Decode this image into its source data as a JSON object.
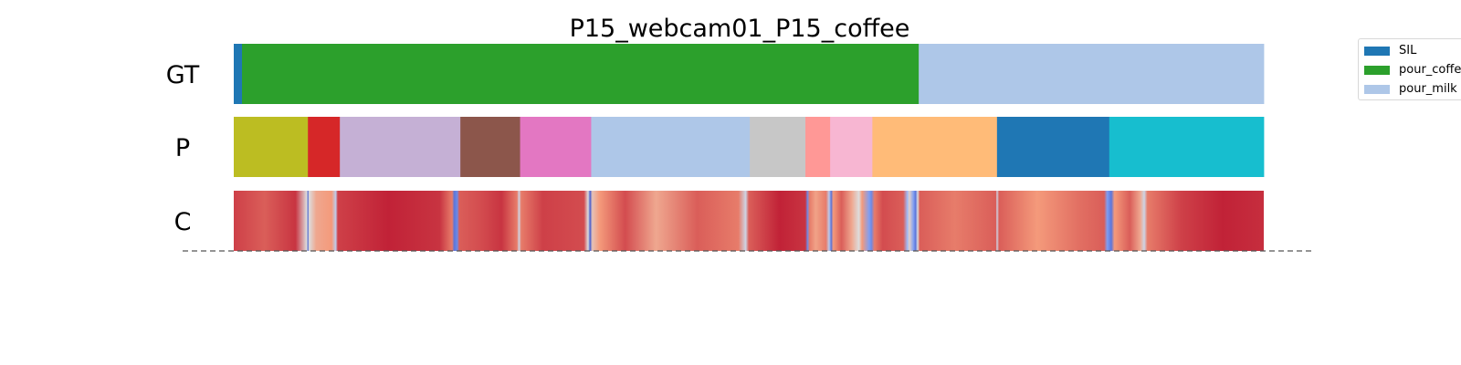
{
  "chart_data": {
    "type": "segmentation",
    "title": "P15_webcam01_P15_coffee",
    "total_frames": 1000,
    "rows": [
      {
        "label": "GT",
        "segments": [
          {
            "start": 0,
            "end": 8,
            "action": "SIL",
            "color": "#1f77b4"
          },
          {
            "start": 8,
            "end": 665,
            "action": "pour_coffee",
            "color": "#2ca02c"
          },
          {
            "start": 665,
            "end": 1000,
            "action": "pour_milk",
            "color": "#aec7e8"
          }
        ]
      },
      {
        "label": "P",
        "segments": [
          {
            "start": 0,
            "end": 72,
            "color": "#bcbd22"
          },
          {
            "start": 72,
            "end": 103,
            "color": "#d62728"
          },
          {
            "start": 103,
            "end": 220,
            "color": "#c5b0d5"
          },
          {
            "start": 220,
            "end": 278,
            "color": "#8c564b"
          },
          {
            "start": 278,
            "end": 347,
            "color": "#e377c2"
          },
          {
            "start": 347,
            "end": 501,
            "color": "#aec7e8"
          },
          {
            "start": 501,
            "end": 555,
            "color": "#c7c7c7"
          },
          {
            "start": 555,
            "end": 579,
            "color": "#ff9896"
          },
          {
            "start": 579,
            "end": 620,
            "color": "#f7b6d2"
          },
          {
            "start": 620,
            "end": 741,
            "color": "#ffbb78"
          },
          {
            "start": 741,
            "end": 850,
            "color": "#1f77b4"
          },
          {
            "start": 850,
            "end": 1000,
            "color": "#17becf"
          }
        ]
      },
      {
        "label": "C",
        "colormap": "coolwarm",
        "confidence": [
          [
            0,
            0.9
          ],
          [
            30,
            0.85
          ],
          [
            60,
            0.92
          ],
          [
            71,
            0.5
          ],
          [
            72,
            0.05
          ],
          [
            73,
            0.5
          ],
          [
            80,
            0.7
          ],
          [
            95,
            0.75
          ],
          [
            99,
            0.4
          ],
          [
            101,
            0.9
          ],
          [
            150,
            0.95
          ],
          [
            200,
            0.92
          ],
          [
            212,
            0.8
          ],
          [
            214,
            0.1
          ],
          [
            217,
            0.15
          ],
          [
            219,
            0.85
          ],
          [
            240,
            0.88
          ],
          [
            260,
            0.92
          ],
          [
            275,
            0.8
          ],
          [
            277,
            0.45
          ],
          [
            279,
            0.8
          ],
          [
            300,
            0.9
          ],
          [
            340,
            0.88
          ],
          [
            344,
            0.5
          ],
          [
            346,
            0.05
          ],
          [
            348,
            0.6
          ],
          [
            355,
            0.75
          ],
          [
            380,
            0.88
          ],
          [
            410,
            0.7
          ],
          [
            450,
            0.85
          ],
          [
            490,
            0.8
          ],
          [
            497,
            0.45
          ],
          [
            500,
            0.85
          ],
          [
            530,
            0.95
          ],
          [
            555,
            0.92
          ],
          [
            557,
            0.15
          ],
          [
            559,
            0.8
          ],
          [
            565,
            0.72
          ],
          [
            575,
            0.8
          ],
          [
            578,
            0.4
          ],
          [
            580,
            0.1
          ],
          [
            582,
            0.75
          ],
          [
            590,
            0.85
          ],
          [
            600,
            0.7
          ],
          [
            607,
            0.5
          ],
          [
            610,
            0.75
          ],
          [
            617,
            0.2
          ],
          [
            619,
            0.15
          ],
          [
            622,
            0.8
          ],
          [
            630,
            0.88
          ],
          [
            650,
            0.85
          ],
          [
            654,
            0.3
          ],
          [
            656,
            0.55
          ],
          [
            660,
            0.2
          ],
          [
            662,
            0.1
          ],
          [
            664,
            0.5
          ],
          [
            666,
            0.85
          ],
          [
            700,
            0.8
          ],
          [
            740,
            0.85
          ],
          [
            741,
            0.45
          ],
          [
            743,
            0.85
          ],
          [
            780,
            0.75
          ],
          [
            820,
            0.82
          ],
          [
            845,
            0.85
          ],
          [
            848,
            0.2
          ],
          [
            852,
            0.1
          ],
          [
            855,
            0.75
          ],
          [
            870,
            0.85
          ],
          [
            880,
            0.7
          ],
          [
            884,
            0.45
          ],
          [
            887,
            0.8
          ],
          [
            920,
            0.9
          ],
          [
            960,
            0.95
          ],
          [
            1000,
            0.93
          ]
        ]
      }
    ],
    "legend": {
      "placement": "top-right",
      "entries": [
        {
          "label": "SIL",
          "color": "#1f77b4"
        },
        {
          "label": "pour_coffee",
          "color": "#2ca02c"
        },
        {
          "label": "pour_milk",
          "color": "#aec7e8"
        }
      ]
    }
  }
}
